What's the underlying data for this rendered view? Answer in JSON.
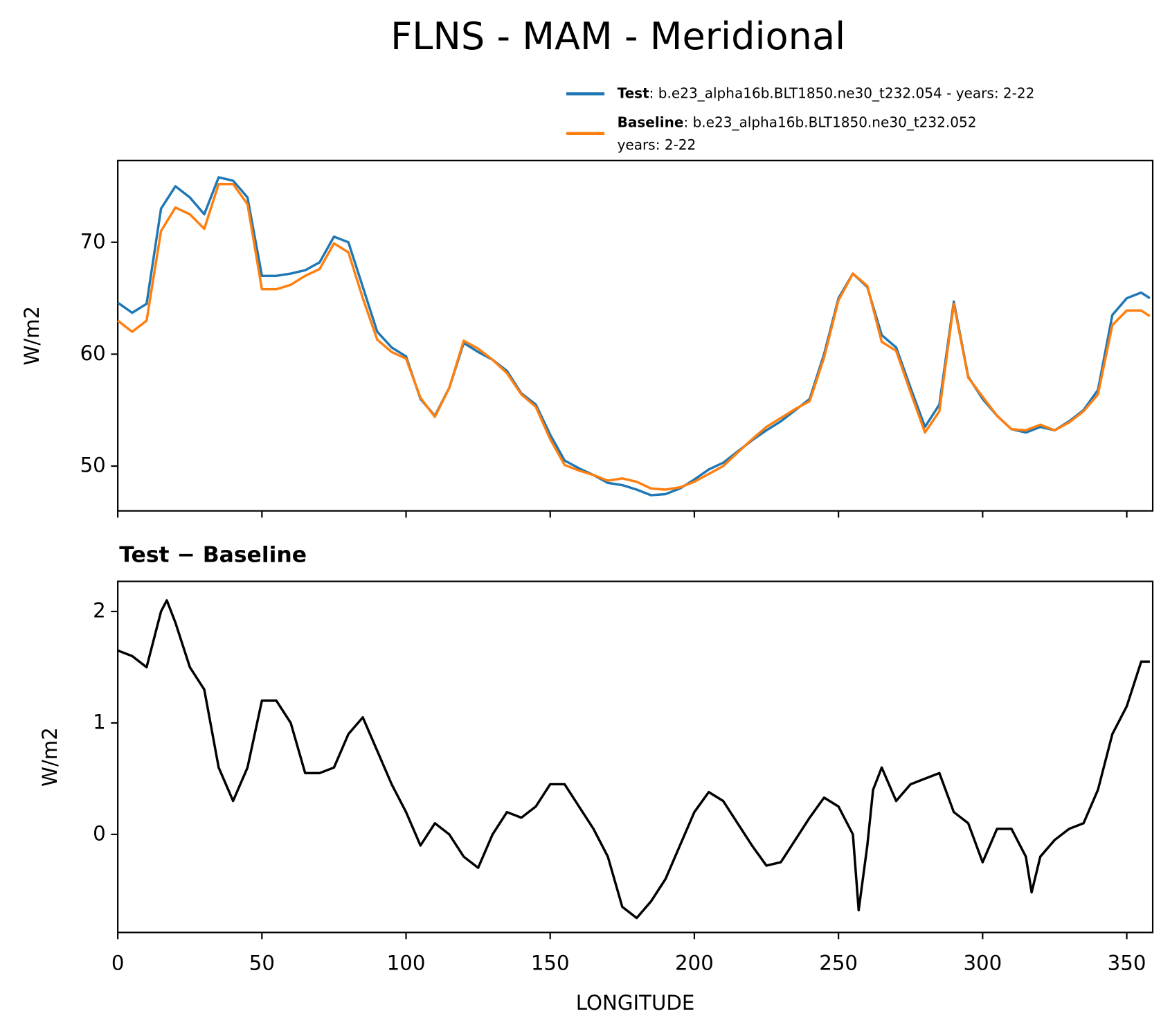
{
  "chart_data": [
    {
      "type": "line",
      "title": "FLNS - MAM - Meridional",
      "ylabel": "W/m2",
      "x": [
        0,
        5,
        10,
        15,
        20,
        25,
        30,
        35,
        40,
        45,
        50,
        55,
        60,
        65,
        70,
        75,
        80,
        85,
        90,
        95,
        100,
        105,
        110,
        115,
        120,
        125,
        130,
        135,
        140,
        145,
        150,
        155,
        160,
        165,
        170,
        175,
        180,
        185,
        190,
        195,
        200,
        205,
        210,
        215,
        220,
        225,
        230,
        235,
        240,
        245,
        250,
        255,
        260,
        265,
        270,
        275,
        280,
        285,
        290,
        295,
        300,
        305,
        310,
        315,
        320,
        325,
        330,
        335,
        340,
        345,
        350,
        355,
        358
      ],
      "xlim": [
        0,
        359
      ],
      "ylim": [
        46,
        77.3
      ],
      "yticks": [
        50,
        60,
        70
      ],
      "legend": "upper right",
      "series": [
        {
          "name": "Test",
          "description": [
            ": b.e23_alpha16b.BLT1850.ne30_t232.054 - years: 2-22"
          ],
          "color": "#1f77b4",
          "values": [
            64.6,
            63.7,
            64.5,
            73.0,
            75.0,
            74.0,
            72.5,
            75.8,
            75.5,
            74.0,
            67.0,
            67.0,
            67.2,
            67.5,
            68.2,
            70.5,
            70.0,
            66.0,
            62.0,
            60.6,
            59.8,
            56.0,
            54.5,
            57.0,
            61.0,
            60.2,
            59.5,
            58.5,
            56.5,
            55.5,
            52.8,
            50.5,
            49.8,
            49.2,
            48.5,
            48.3,
            47.9,
            47.4,
            47.5,
            48.0,
            48.8,
            49.7,
            50.3,
            51.3,
            52.3,
            53.2,
            54.0,
            55.0,
            56.0,
            60.0,
            65.0,
            67.2,
            66.0,
            61.7,
            60.6,
            57.0,
            53.5,
            55.5,
            64.7,
            58.0,
            56.0,
            54.5,
            53.3,
            53.0,
            53.5,
            53.2,
            54.0,
            55.0,
            56.8,
            63.5,
            65.0,
            65.5,
            65.0
          ]
        },
        {
          "name": "Baseline",
          "description": [
            ": b.e23_alpha16b.BLT1850.ne30_t232.052",
            "years: 2-22"
          ],
          "color": "#ff7f0e",
          "values": [
            63.0,
            62.0,
            63.0,
            71.0,
            73.1,
            72.5,
            71.2,
            75.2,
            75.2,
            73.4,
            65.8,
            65.8,
            66.2,
            67.0,
            67.6,
            69.9,
            69.1,
            65.0,
            61.3,
            60.2,
            59.6,
            56.1,
            54.4,
            57.0,
            61.2,
            60.5,
            59.5,
            58.3,
            56.4,
            55.3,
            52.4,
            50.1,
            49.6,
            49.2,
            48.7,
            48.9,
            48.6,
            48.0,
            47.9,
            48.1,
            48.6,
            49.3,
            50.0,
            51.2,
            52.4,
            53.5,
            54.3,
            55.1,
            55.8,
            59.7,
            64.8,
            67.2,
            66.1,
            61.1,
            60.3,
            56.6,
            53.0,
            54.9,
            64.5,
            57.9,
            56.2,
            54.5,
            53.3,
            53.2,
            53.7,
            53.2,
            53.9,
            54.9,
            56.4,
            62.6,
            63.9,
            63.9,
            63.4
          ]
        }
      ]
    },
    {
      "type": "line",
      "title": "Test − Baseline",
      "ylabel": "W/m2",
      "xlabel": "LONGITUDE",
      "x": [
        0,
        5,
        10,
        15,
        17,
        20,
        25,
        30,
        35,
        40,
        45,
        50,
        55,
        60,
        65,
        70,
        75,
        80,
        85,
        90,
        95,
        100,
        105,
        110,
        115,
        120,
        125,
        130,
        135,
        140,
        145,
        150,
        155,
        160,
        165,
        170,
        175,
        180,
        185,
        190,
        195,
        200,
        205,
        210,
        215,
        220,
        225,
        230,
        235,
        240,
        245,
        250,
        255,
        257,
        260,
        262,
        265,
        270,
        275,
        280,
        285,
        290,
        295,
        300,
        305,
        310,
        315,
        317,
        320,
        325,
        330,
        335,
        340,
        345,
        350,
        355,
        358
      ],
      "xlim": [
        0,
        359
      ],
      "xticks": [
        0,
        50,
        100,
        150,
        200,
        250,
        300,
        350
      ],
      "ylim": [
        -0.88,
        2.27
      ],
      "yticks": [
        0,
        1,
        2
      ],
      "series": [
        {
          "name": "Test − Baseline",
          "color": "#000000",
          "values": [
            1.65,
            1.6,
            1.5,
            2.0,
            2.1,
            1.9,
            1.5,
            1.3,
            0.6,
            0.3,
            0.6,
            1.2,
            1.2,
            1.0,
            0.55,
            0.55,
            0.6,
            0.9,
            1.05,
            0.75,
            0.45,
            0.2,
            -0.1,
            0.1,
            0.0,
            -0.2,
            -0.3,
            0.0,
            0.2,
            0.15,
            0.25,
            0.45,
            0.45,
            0.25,
            0.05,
            -0.2,
            -0.65,
            -0.75,
            -0.6,
            -0.4,
            -0.1,
            0.2,
            0.38,
            0.3,
            0.1,
            -0.1,
            -0.28,
            -0.25,
            -0.05,
            0.15,
            0.33,
            0.25,
            0.0,
            -0.68,
            -0.1,
            0.4,
            0.6,
            0.3,
            0.45,
            0.5,
            0.55,
            0.2,
            0.1,
            -0.25,
            0.05,
            0.05,
            -0.2,
            -0.52,
            -0.2,
            -0.05,
            0.05,
            0.1,
            0.4,
            0.9,
            1.15,
            1.55,
            1.55
          ]
        }
      ]
    }
  ]
}
